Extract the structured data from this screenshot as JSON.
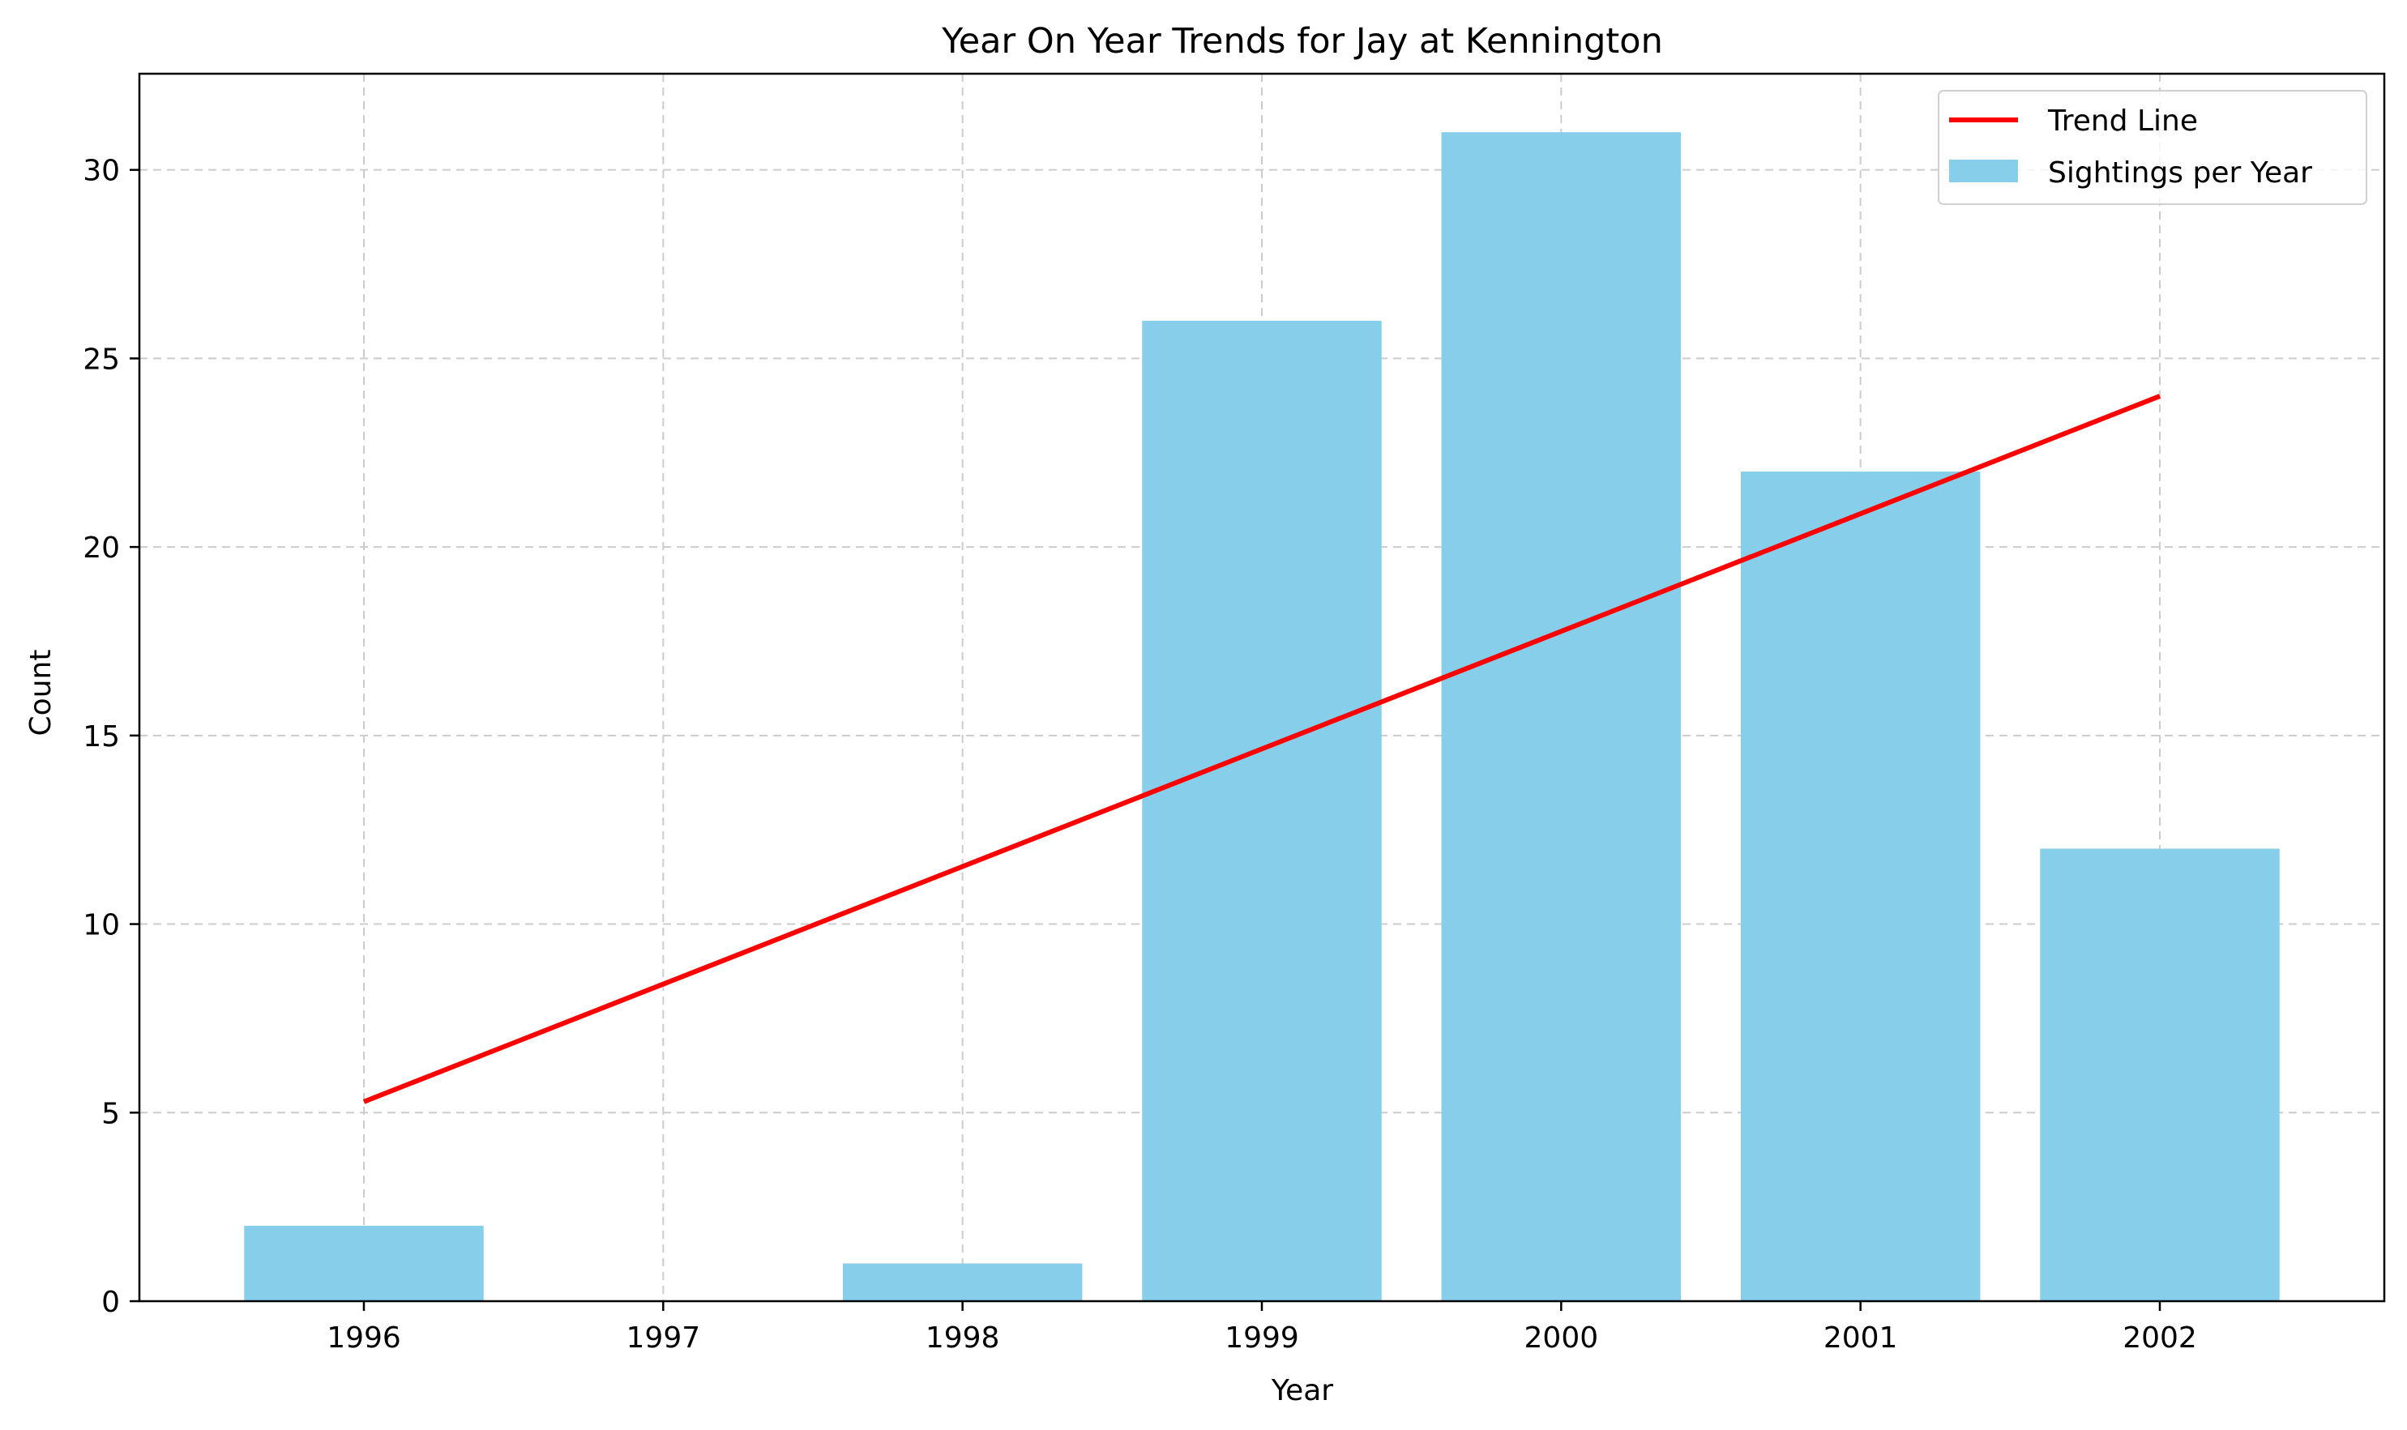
{
  "chart_data": {
    "type": "bar",
    "title": "Year On Year Trends for Jay at Kennington",
    "xlabel": "Year",
    "ylabel": "Count",
    "categories": [
      "1996",
      "1997",
      "1998",
      "1999",
      "2000",
      "2001",
      "2002"
    ],
    "x_range": [
      1995.25,
      2002.75
    ],
    "ylim": [
      0,
      32.55
    ],
    "y_ticks": [
      0,
      5,
      10,
      15,
      20,
      25,
      30
    ],
    "grid": true,
    "legend_position": "top-right",
    "series": [
      {
        "name": "Sightings per Year",
        "type": "bar",
        "color": "#87ceeb",
        "x": [
          1996,
          1997,
          1998,
          1999,
          2000,
          2001,
          2002
        ],
        "values": [
          2,
          0,
          1,
          26,
          31,
          22,
          12
        ]
      },
      {
        "name": "Trend Line",
        "type": "line",
        "color": "#ff0000",
        "x": [
          1996,
          2002
        ],
        "values": [
          5.29,
          24.0
        ]
      }
    ]
  }
}
